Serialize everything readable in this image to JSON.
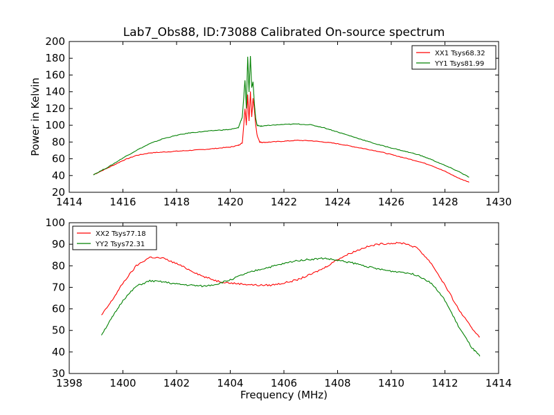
{
  "chart_data": [
    {
      "type": "line",
      "title": "Lab7_Obs88, ID:73088 Calibrated On-source spectrum",
      "xlabel": "",
      "ylabel": "Power in Kelvin",
      "xlim": [
        1414,
        1430
      ],
      "ylim": [
        20,
        200
      ],
      "xticks": [
        "1414",
        "1416",
        "1418",
        "1420",
        "1422",
        "1424",
        "1426",
        "1428",
        "1430"
      ],
      "yticks": [
        "20",
        "40",
        "60",
        "80",
        "100",
        "120",
        "140",
        "160",
        "180",
        "200"
      ],
      "grid": false,
      "legend_position": "top-right",
      "series": [
        {
          "name": "XX1 Tsys68.32",
          "color": "#ff0000",
          "x": [
            1414.9,
            1415.5,
            1416.0,
            1416.5,
            1417.0,
            1417.5,
            1418.0,
            1418.5,
            1419.0,
            1419.5,
            1420.0,
            1420.3,
            1420.45,
            1420.55,
            1420.6,
            1420.65,
            1420.7,
            1420.75,
            1420.8,
            1420.85,
            1420.9,
            1420.95,
            1421.0,
            1421.1,
            1421.2,
            1421.5,
            1422.0,
            1422.5,
            1423.0,
            1423.5,
            1424.0,
            1424.5,
            1425.0,
            1425.5,
            1426.0,
            1426.5,
            1427.0,
            1427.5,
            1428.0,
            1428.5,
            1428.9
          ],
          "y": [
            41,
            50,
            58,
            64,
            67,
            68,
            69,
            70,
            71,
            72.5,
            74,
            76,
            79,
            120,
            100,
            137,
            105,
            140,
            110,
            132,
            118,
            100,
            88,
            80,
            79.5,
            80,
            81,
            82,
            81.5,
            80,
            78,
            75,
            72,
            69,
            65,
            61,
            57,
            52,
            45,
            37,
            32
          ]
        },
        {
          "name": "YY1 Tsys81.99",
          "color": "#008000",
          "x": [
            1414.9,
            1415.5,
            1416.0,
            1416.5,
            1417.0,
            1417.5,
            1418.0,
            1418.5,
            1419.0,
            1419.5,
            1420.0,
            1420.3,
            1420.45,
            1420.55,
            1420.6,
            1420.65,
            1420.7,
            1420.75,
            1420.8,
            1420.85,
            1420.9,
            1420.95,
            1421.0,
            1421.1,
            1421.2,
            1421.5,
            1422.0,
            1422.5,
            1423.0,
            1423.5,
            1424.0,
            1424.5,
            1425.0,
            1425.5,
            1426.0,
            1426.5,
            1427.0,
            1427.5,
            1428.0,
            1428.5,
            1428.9
          ],
          "y": [
            41,
            51,
            61,
            70,
            78,
            84,
            88,
            91,
            92.5,
            94,
            95,
            97,
            110,
            154,
            120,
            182,
            140,
            183,
            145,
            152,
            125,
            108,
            100,
            99,
            99,
            100,
            101,
            101.5,
            100.5,
            97,
            92,
            87,
            82,
            77,
            73,
            69,
            65,
            59,
            52,
            45,
            38
          ]
        }
      ]
    },
    {
      "type": "line",
      "title": "",
      "xlabel": "Frequency (MHz)",
      "ylabel": "",
      "xlim": [
        1398,
        1414
      ],
      "ylim": [
        30,
        100
      ],
      "xticks": [
        "1398",
        "1400",
        "1402",
        "1404",
        "1406",
        "1408",
        "1410",
        "1412",
        "1414"
      ],
      "yticks": [
        "30",
        "40",
        "50",
        "60",
        "70",
        "80",
        "90",
        "100"
      ],
      "grid": false,
      "legend_position": "top-left",
      "series": [
        {
          "name": "XX2 Tsys77.18",
          "color": "#ff0000",
          "x": [
            1399.2,
            1399.6,
            1400.0,
            1400.5,
            1401.0,
            1401.5,
            1402.0,
            1402.5,
            1403.0,
            1403.5,
            1404.0,
            1404.5,
            1405.0,
            1405.5,
            1406.0,
            1406.5,
            1407.0,
            1407.5,
            1408.0,
            1408.5,
            1409.0,
            1409.5,
            1410.0,
            1410.5,
            1411.0,
            1411.5,
            1412.0,
            1412.5,
            1413.0,
            1413.3
          ],
          "y": [
            57,
            64,
            72,
            80,
            84,
            83.5,
            81,
            78,
            75,
            73,
            72,
            71.5,
            71,
            71,
            72,
            73.5,
            76,
            79,
            83,
            86,
            88.5,
            90,
            90.5,
            90.5,
            88,
            81,
            71,
            60,
            51,
            47
          ]
        },
        {
          "name": "YY2 Tsys72.31",
          "color": "#008000",
          "x": [
            1399.2,
            1399.6,
            1400.0,
            1400.5,
            1401.0,
            1401.5,
            1402.0,
            1402.5,
            1403.0,
            1403.5,
            1404.0,
            1404.5,
            1405.0,
            1405.5,
            1406.0,
            1406.5,
            1407.0,
            1407.5,
            1408.0,
            1408.5,
            1409.0,
            1409.5,
            1410.0,
            1410.5,
            1411.0,
            1411.5,
            1412.0,
            1412.5,
            1413.0,
            1413.3
          ],
          "y": [
            48,
            56,
            64,
            70.5,
            73,
            72.5,
            71.5,
            71,
            70.5,
            71.5,
            73.5,
            76,
            78,
            79.5,
            81,
            82.5,
            83,
            83.5,
            82.5,
            81.5,
            80,
            78.5,
            77.5,
            77,
            75.5,
            72,
            64,
            52,
            42,
            38
          ]
        }
      ]
    }
  ]
}
